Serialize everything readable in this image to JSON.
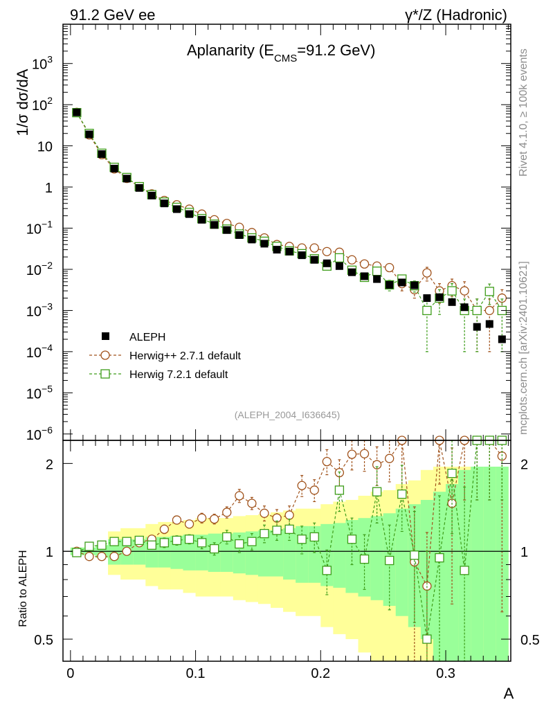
{
  "header": {
    "left_title": "91.2 GeV ee",
    "right_title": "γ*/Z (Hadronic)"
  },
  "side_text": {
    "rivet": "Rivet 4.1.0, ≥ 100k events",
    "mcplots": "mcplots.cern.ch [arXiv:2401.10621]"
  },
  "colors": {
    "data": "#000000",
    "herwigpp": "#a0521b",
    "herwig7": "#3c9c18",
    "band_inner": "#99ff99",
    "band_outer": "#ffff99"
  },
  "chart_data": [
    {
      "type": "scatter",
      "panel": "main",
      "title": "Aplanarity (E",
      "title_sub": "CMS",
      "title_rest": "=91.2 GeV)",
      "xlabel": "A",
      "ylabel": "1/σ dσ/dA",
      "yscale": "log",
      "xlim": [
        -0.006,
        0.352
      ],
      "ylim": [
        7e-07,
        9000
      ],
      "analysis_label": "(ALEPH_2004_I636645)",
      "legend_placement": "lower-left",
      "y_ticks": [
        {
          "base": "10",
          "exp": "3",
          "value": 1000
        },
        {
          "base": "10",
          "exp": "2",
          "value": 100
        },
        {
          "base": "10",
          "exp": "",
          "value": 10
        },
        {
          "base": "1",
          "exp": "",
          "value": 1
        },
        {
          "base": "10",
          "exp": "−1",
          "value": 0.1
        },
        {
          "base": "10",
          "exp": "−2",
          "value": 0.01
        },
        {
          "base": "10",
          "exp": "−3",
          "value": 0.001
        },
        {
          "base": "10",
          "exp": "−4",
          "value": 0.0001
        },
        {
          "base": "10",
          "exp": "−5",
          "value": 1e-05
        },
        {
          "base": "10",
          "exp": "−6",
          "value": 1e-06
        }
      ],
      "series": [
        {
          "name": "ALEPH",
          "style": "filled-square",
          "x": [
            0.005,
            0.015,
            0.025,
            0.035,
            0.045,
            0.055,
            0.065,
            0.075,
            0.085,
            0.095,
            0.105,
            0.115,
            0.125,
            0.135,
            0.145,
            0.155,
            0.165,
            0.175,
            0.185,
            0.195,
            0.205,
            0.215,
            0.225,
            0.235,
            0.245,
            0.255,
            0.265,
            0.275,
            0.285,
            0.295,
            0.305,
            0.315,
            0.325,
            0.335,
            0.345
          ],
          "y": [
            65,
            19,
            6.3,
            2.8,
            1.6,
            0.95,
            0.62,
            0.4,
            0.29,
            0.22,
            0.16,
            0.12,
            0.09,
            0.068,
            0.053,
            0.042,
            0.03,
            0.027,
            0.022,
            0.017,
            0.014,
            0.012,
            0.0085,
            0.0068,
            0.0058,
            0.0042,
            0.0048,
            0.0041,
            0.002,
            0.0021,
            0.0016,
            0.0012,
            0.0004,
            0.00047,
            0.0002
          ]
        },
        {
          "name": "Herwig++ 2.7.1 default",
          "style": "open-circle-dashed",
          "x": [
            0.005,
            0.015,
            0.025,
            0.035,
            0.045,
            0.055,
            0.065,
            0.075,
            0.085,
            0.095,
            0.105,
            0.115,
            0.125,
            0.135,
            0.145,
            0.155,
            0.165,
            0.175,
            0.185,
            0.195,
            0.205,
            0.215,
            0.225,
            0.235,
            0.245,
            0.255,
            0.265,
            0.275,
            0.285,
            0.295,
            0.305,
            0.315,
            0.325,
            0.335,
            0.345
          ],
          "y": [
            65,
            18.5,
            6.1,
            2.75,
            1.62,
            1.02,
            0.68,
            0.47,
            0.37,
            0.29,
            0.22,
            0.16,
            0.13,
            0.105,
            0.078,
            0.058,
            0.04,
            0.036,
            0.033,
            0.033,
            0.027,
            0.026,
            0.017,
            0.0135,
            0.012,
            0.011,
            0.0045,
            0.0032,
            0.0082,
            0.003,
            0.004,
            0.003,
            0.001,
            0.001,
            0.002
          ],
          "yerr": [
            0.5,
            0.2,
            0.1,
            0.05,
            0.03,
            0.02,
            0.012,
            0.009,
            0.007,
            0.006,
            0.005,
            0.004,
            0.003,
            0.003,
            0.002,
            0.002,
            0.0015,
            0.0015,
            0.0015,
            0.0015,
            0.0015,
            0.0015,
            0.0012,
            0.0012,
            0.0012,
            0.0012,
            0.0015,
            0.0012,
            0.003,
            0.0015,
            0.0018,
            0.002,
            0.0009,
            0.0009,
            0.0012
          ]
        },
        {
          "name": "Herwig 7.2.1 default",
          "style": "open-square-dashed",
          "x": [
            0.005,
            0.015,
            0.025,
            0.035,
            0.045,
            0.055,
            0.065,
            0.075,
            0.085,
            0.095,
            0.105,
            0.115,
            0.125,
            0.135,
            0.145,
            0.155,
            0.165,
            0.175,
            0.185,
            0.195,
            0.205,
            0.215,
            0.225,
            0.235,
            0.245,
            0.255,
            0.265,
            0.275,
            0.285,
            0.295,
            0.305,
            0.315,
            0.325,
            0.335,
            0.345
          ],
          "y": [
            64,
            20,
            6.6,
            3.0,
            1.7,
            1.02,
            0.65,
            0.43,
            0.32,
            0.24,
            0.17,
            0.125,
            0.095,
            0.072,
            0.058,
            0.048,
            0.036,
            0.028,
            0.024,
            0.018,
            0.012,
            0.019,
            0.0095,
            0.0064,
            0.009,
            0.0042,
            0.0058,
            0.004,
            0.001,
            0.002,
            0.003,
            0.001,
            0.001,
            0.0029,
            0.001
          ],
          "yerr": [
            0.5,
            0.2,
            0.1,
            0.05,
            0.03,
            0.02,
            0.012,
            0.009,
            0.007,
            0.006,
            0.005,
            0.004,
            0.003,
            0.003,
            0.002,
            0.002,
            0.0015,
            0.0015,
            0.0015,
            0.0015,
            0.0015,
            0.002,
            0.0012,
            0.0012,
            0.0015,
            0.0012,
            0.0015,
            0.0012,
            0.0009,
            0.0012,
            0.0015,
            0.0009,
            0.0009,
            0.0015,
            0.0009
          ]
        }
      ]
    },
    {
      "type": "scatter",
      "panel": "ratio",
      "ylabel": "Ratio to ALEPH",
      "xlabel": "A",
      "yscale": "log",
      "xlim": [
        -0.006,
        0.352
      ],
      "ylim": [
        0.42,
        2.4
      ],
      "y_ticks": [
        {
          "label": "2",
          "value": 2
        },
        {
          "label": "1",
          "value": 1
        },
        {
          "label": "0.5",
          "value": 0.5
        }
      ],
      "x_ticks": [
        {
          "label": "0",
          "value": 0
        },
        {
          "label": "0.1",
          "value": 0.1
        },
        {
          "label": "0.2",
          "value": 0.2
        },
        {
          "label": "0.3",
          "value": 0.3
        }
      ],
      "bins": [
        0,
        0.01,
        0.02,
        0.03,
        0.04,
        0.05,
        0.06,
        0.07,
        0.08,
        0.09,
        0.1,
        0.11,
        0.12,
        0.13,
        0.14,
        0.15,
        0.16,
        0.17,
        0.18,
        0.19,
        0.2,
        0.21,
        0.22,
        0.23,
        0.24,
        0.25,
        0.26,
        0.27,
        0.28,
        0.29,
        0.3,
        0.31,
        0.32,
        0.33,
        0.34,
        0.35
      ],
      "band_inner": [
        0.03,
        0.03,
        0.05,
        0.1,
        0.1,
        0.1,
        0.12,
        0.12,
        0.13,
        0.14,
        0.14,
        0.15,
        0.15,
        0.16,
        0.17,
        0.18,
        0.18,
        0.2,
        0.22,
        0.22,
        0.24,
        0.25,
        0.28,
        0.3,
        0.32,
        0.35,
        0.4,
        0.45,
        0.5,
        0.6,
        0.7,
        0.9,
        0.95,
        0.95,
        0.95
      ],
      "band_outer": [
        0.03,
        0.03,
        0.05,
        0.17,
        0.2,
        0.2,
        0.24,
        0.26,
        0.26,
        0.28,
        0.3,
        0.3,
        0.3,
        0.32,
        0.33,
        0.34,
        0.36,
        0.38,
        0.4,
        0.4,
        0.45,
        0.48,
        0.5,
        0.55,
        0.6,
        0.62,
        0.7,
        0.75,
        0.9,
        0.95,
        0.95,
        0.95,
        0.95,
        0.95,
        0.95
      ],
      "series": [
        {
          "name": "Herwig++ 2.7.1 default",
          "y": [
            1.0,
            0.96,
            0.96,
            0.96,
            1.0,
            1.07,
            1.1,
            1.19,
            1.28,
            1.24,
            1.3,
            1.29,
            1.36,
            1.55,
            1.46,
            1.35,
            1.3,
            1.33,
            1.68,
            1.62,
            2.03,
            1.86,
            2.15,
            2.16,
            1.98,
            2.08,
            2.4,
            0.92,
            0.76,
            2.5,
            1.46,
            2.5,
            2.5,
            2.5,
            2.12
          ],
          "yerr": [
            0.02,
            0.02,
            0.02,
            0.02,
            0.02,
            0.02,
            0.03,
            0.04,
            0.04,
            0.04,
            0.05,
            0.05,
            0.06,
            0.08,
            0.07,
            0.08,
            0.09,
            0.1,
            0.14,
            0.14,
            0.2,
            0.2,
            0.25,
            0.28,
            0.3,
            0.35,
            0.8,
            0.5,
            0.4,
            0.8,
            0.8,
            1.0,
            1.0,
            1.0,
            1.5
          ]
        },
        {
          "name": "Herwig 7.2.1 default",
          "y": [
            0.99,
            1.04,
            1.05,
            1.08,
            1.08,
            1.09,
            1.05,
            1.07,
            1.09,
            1.1,
            1.07,
            1.02,
            1.12,
            1.06,
            1.08,
            1.15,
            1.18,
            1.19,
            1.1,
            1.12,
            0.86,
            1.62,
            1.1,
            0.94,
            1.6,
            0.93,
            1.57,
            0.97,
            0.5,
            0.95,
            1.85,
            0.86,
            2.5,
            2.5,
            2.5
          ],
          "yerr": [
            0.02,
            0.02,
            0.02,
            0.02,
            0.02,
            0.02,
            0.03,
            0.04,
            0.04,
            0.04,
            0.05,
            0.05,
            0.06,
            0.07,
            0.07,
            0.08,
            0.09,
            0.1,
            0.12,
            0.13,
            0.15,
            0.25,
            0.2,
            0.2,
            0.35,
            0.3,
            0.4,
            0.4,
            0.5,
            0.6,
            0.7,
            0.8,
            1.0,
            1.0,
            1.0
          ]
        }
      ]
    }
  ]
}
